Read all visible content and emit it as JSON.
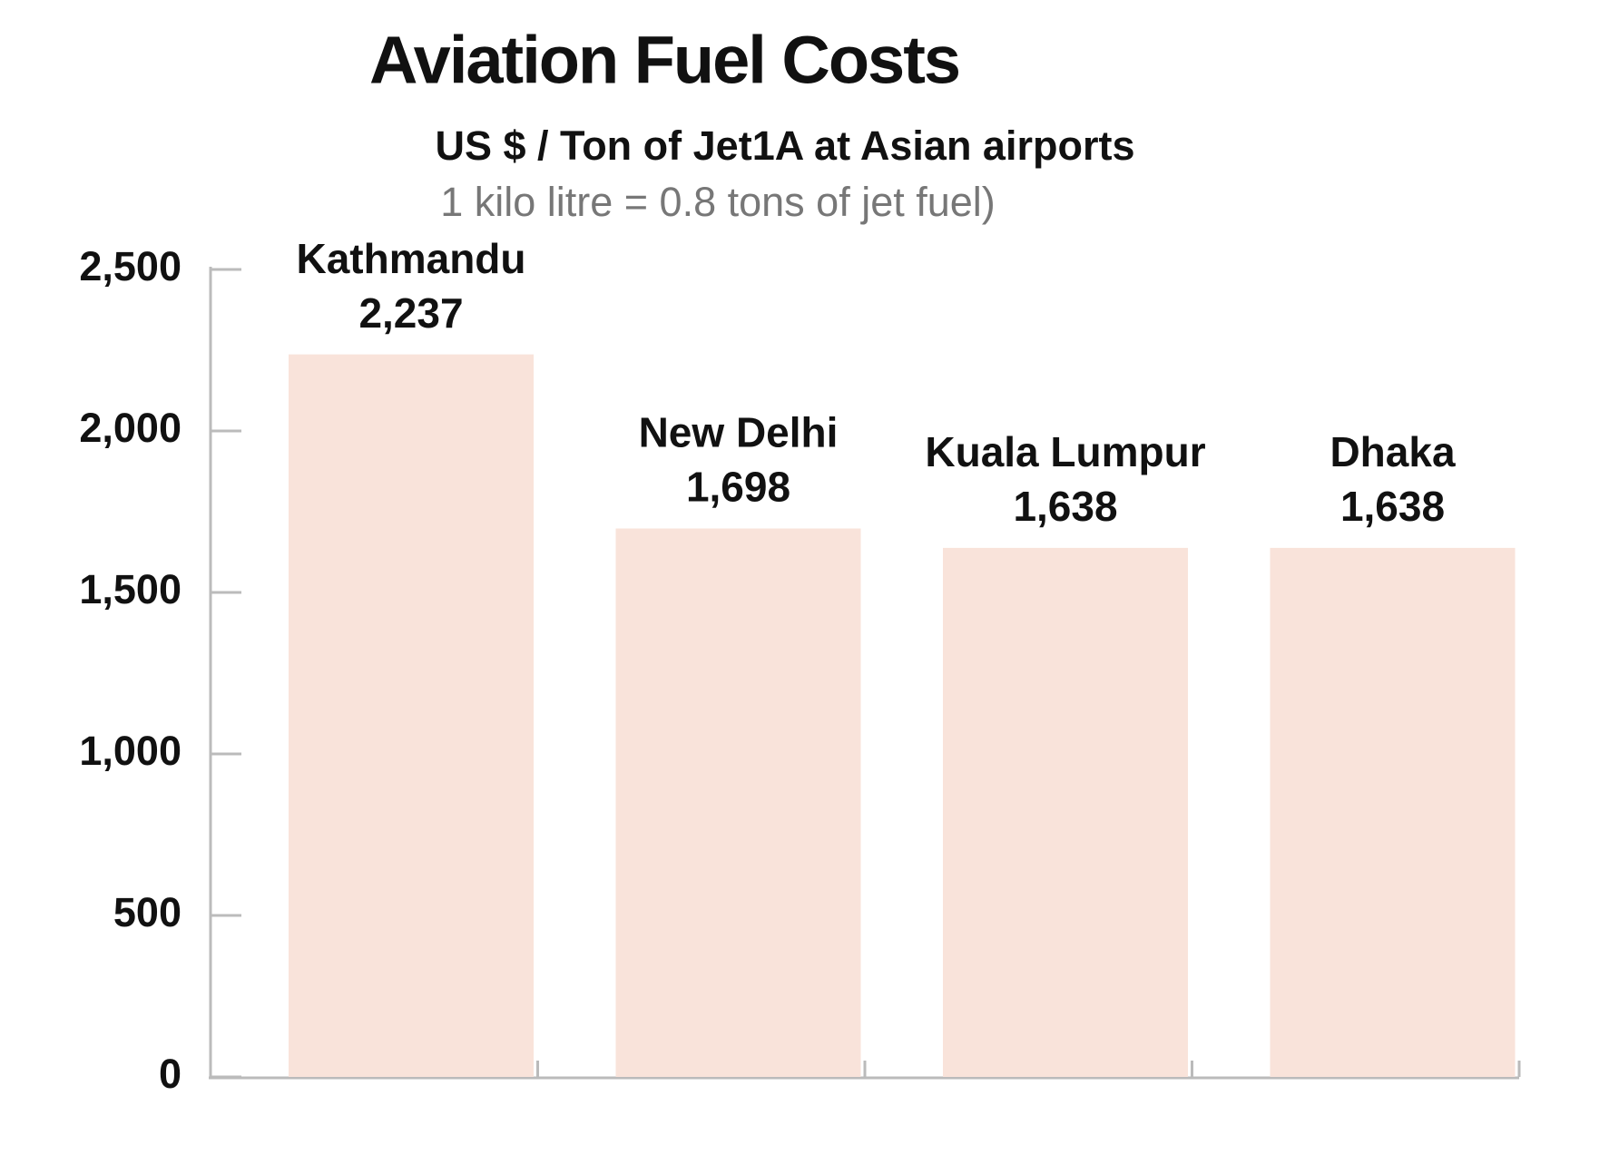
{
  "chart_data": {
    "type": "bar",
    "title": "Aviation Fuel Costs",
    "subtitle": "US $ / Ton of Jet1A at Asian airports",
    "note": "1 kilo litre = 0.8 tons of jet fuel)",
    "categories": [
      "Kathmandu",
      "New Delhi",
      "Kuala Lumpur",
      "Dhaka"
    ],
    "values": [
      2237,
      1698,
      1638,
      1638
    ],
    "value_labels": [
      "2,237",
      "1,698",
      "1,638",
      "1,638"
    ],
    "color": "#f9e3da",
    "ylim": [
      0,
      2500
    ],
    "yticks": [
      0,
      500,
      {
        "value": 1000,
        "label": "1,000"
      },
      {
        "value": 1500,
        "label": "1,500"
      },
      {
        "value": 2000,
        "label": "2,000"
      },
      {
        "value": 2500,
        "label": "2,500"
      }
    ],
    "grid": false
  }
}
